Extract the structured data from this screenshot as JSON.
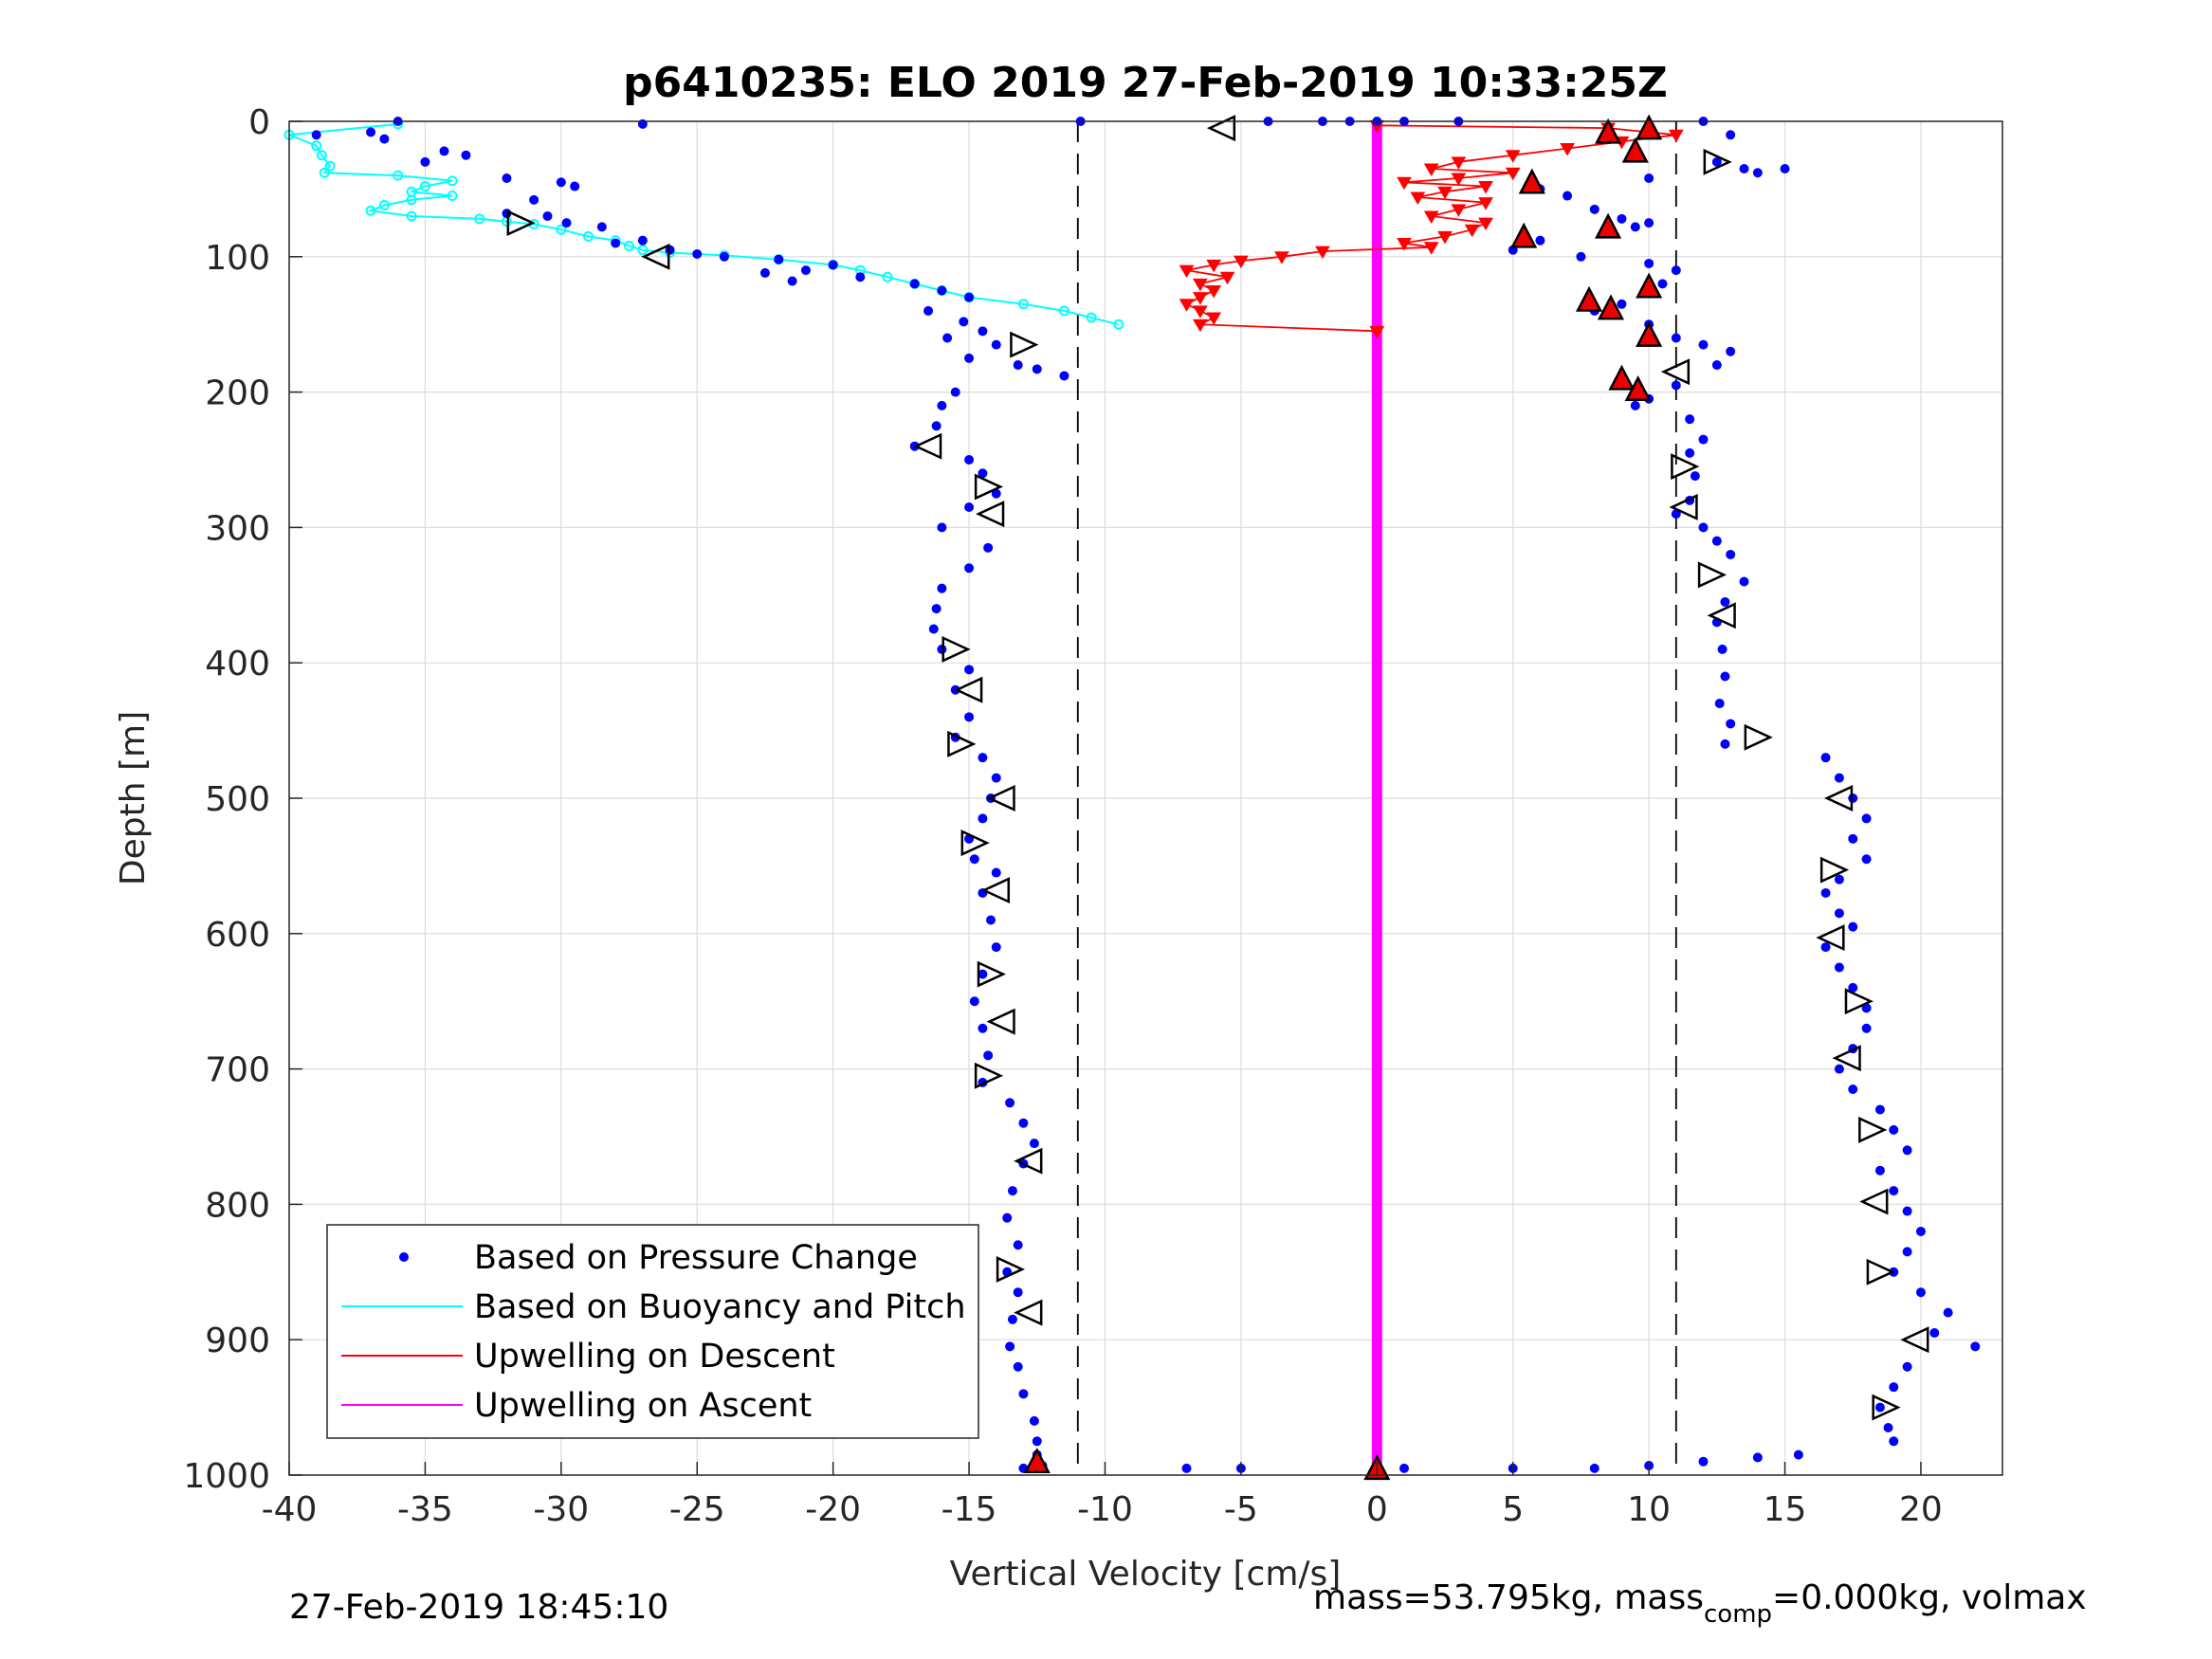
{
  "chart_data": {
    "type": "scatter",
    "title": "p6410235: ELO 2019 27-Feb-2019 10:33:25Z",
    "xlabel": "Vertical Velocity [cm/s]",
    "ylabel": "Depth [m]",
    "xlim": [
      -40,
      23
    ],
    "ylim": [
      0,
      1000
    ],
    "y_reversed": true,
    "grid": true,
    "xticks": [
      -40,
      -35,
      -30,
      -25,
      -20,
      -15,
      -10,
      -5,
      0,
      5,
      10,
      15,
      20
    ],
    "yticks": [
      0,
      100,
      200,
      300,
      400,
      500,
      600,
      700,
      800,
      900,
      1000
    ],
    "legend_position": "bottom-left",
    "colors": {
      "pressure": "#0000ff",
      "buoyancy": "#00ffff",
      "descent": "#ff0000",
      "ascent": "#ff00ff",
      "threshold": "#000000"
    },
    "thresholds_x": [
      -11,
      11
    ],
    "series": [
      {
        "name": "Based on Pressure Change",
        "style": "dots",
        "descent_points": [
          [
            -36,
            0
          ],
          [
            -27,
            2
          ],
          [
            -10.9,
            0
          ],
          [
            -39,
            10
          ],
          [
            -37,
            8
          ],
          [
            -36.5,
            13
          ],
          [
            -35,
            30
          ],
          [
            -34.3,
            22
          ],
          [
            -33.5,
            25
          ],
          [
            -32,
            42
          ],
          [
            -30,
            45
          ],
          [
            -29.5,
            48
          ],
          [
            -31,
            58
          ],
          [
            -32,
            68
          ],
          [
            -30.5,
            70
          ],
          [
            -29.8,
            75
          ],
          [
            -28.5,
            78
          ],
          [
            -28,
            90
          ],
          [
            -27,
            88
          ],
          [
            -26,
            95
          ],
          [
            -25,
            98
          ],
          [
            -24,
            100
          ],
          [
            -22,
            102
          ],
          [
            -20,
            106
          ],
          [
            -21,
            110
          ],
          [
            -22.5,
            112
          ],
          [
            -21.5,
            118
          ],
          [
            -19,
            115
          ],
          [
            -17,
            120
          ],
          [
            -16,
            125
          ],
          [
            -15,
            130
          ],
          [
            -16.5,
            140
          ],
          [
            -15.2,
            148
          ],
          [
            -14.5,
            155
          ],
          [
            -15.8,
            160
          ],
          [
            -14,
            165
          ],
          [
            -15,
            175
          ],
          [
            -13.2,
            180
          ],
          [
            -11.5,
            188
          ],
          [
            -12.5,
            183
          ],
          [
            -15.5,
            200
          ],
          [
            -16,
            210
          ],
          [
            -16.2,
            225
          ],
          [
            -17,
            240
          ],
          [
            -15,
            250
          ],
          [
            -14.5,
            260
          ],
          [
            -14,
            275
          ],
          [
            -15,
            285
          ],
          [
            -16,
            300
          ],
          [
            -14.3,
            315
          ],
          [
            -15,
            330
          ],
          [
            -16,
            345
          ],
          [
            -16.2,
            360
          ],
          [
            -16.3,
            375
          ],
          [
            -16,
            390
          ],
          [
            -15,
            405
          ],
          [
            -15.5,
            420
          ],
          [
            -15,
            440
          ],
          [
            -15.5,
            455
          ],
          [
            -14.5,
            470
          ],
          [
            -14,
            485
          ],
          [
            -14.2,
            500
          ],
          [
            -14.5,
            515
          ],
          [
            -15,
            530
          ],
          [
            -14.8,
            545
          ],
          [
            -14,
            555
          ],
          [
            -14.5,
            570
          ],
          [
            -14.2,
            590
          ],
          [
            -14,
            610
          ],
          [
            -14.5,
            630
          ],
          [
            -14.8,
            650
          ],
          [
            -14.5,
            670
          ],
          [
            -14.3,
            690
          ],
          [
            -14.5,
            710
          ],
          [
            -13.5,
            725
          ],
          [
            -13,
            740
          ],
          [
            -12.6,
            755
          ],
          [
            -13,
            770
          ],
          [
            -13.4,
            790
          ],
          [
            -13.6,
            810
          ],
          [
            -13.2,
            830
          ],
          [
            -13.6,
            850
          ],
          [
            -13.2,
            865
          ],
          [
            -13.4,
            885
          ],
          [
            -13.5,
            905
          ],
          [
            -13.2,
            920
          ],
          [
            -13,
            940
          ],
          [
            -12.6,
            960
          ],
          [
            -12.5,
            975
          ],
          [
            -12.5,
            985
          ],
          [
            -13,
            995
          ],
          [
            -12.3,
            993
          ]
        ],
        "ascent_points": [
          [
            0,
            0
          ],
          [
            -4,
            0
          ],
          [
            -2,
            0
          ],
          [
            -1,
            0
          ],
          [
            1,
            0
          ],
          [
            3,
            0
          ],
          [
            8.5,
            5
          ],
          [
            10,
            10
          ],
          [
            12,
            0
          ],
          [
            13,
            10
          ],
          [
            13.5,
            35
          ],
          [
            12.5,
            30
          ],
          [
            15,
            35
          ],
          [
            14,
            38
          ],
          [
            10,
            42
          ],
          [
            7,
            55
          ],
          [
            6,
            50
          ],
          [
            8,
            65
          ],
          [
            9,
            72
          ],
          [
            9.5,
            78
          ],
          [
            10,
            75
          ],
          [
            6,
            88
          ],
          [
            5,
            95
          ],
          [
            7.5,
            100
          ],
          [
            10,
            105
          ],
          [
            11,
            110
          ],
          [
            10.5,
            120
          ],
          [
            10,
            125
          ],
          [
            9,
            135
          ],
          [
            8,
            140
          ],
          [
            10,
            150
          ],
          [
            11,
            160
          ],
          [
            12,
            165
          ],
          [
            13,
            170
          ],
          [
            12.5,
            180
          ],
          [
            11,
            195
          ],
          [
            10,
            205
          ],
          [
            9.5,
            210
          ],
          [
            11.5,
            220
          ],
          [
            12,
            235
          ],
          [
            11.5,
            245
          ],
          [
            11.7,
            262
          ],
          [
            11.5,
            280
          ],
          [
            11,
            290
          ],
          [
            12,
            300
          ],
          [
            12.5,
            310
          ],
          [
            13,
            320
          ],
          [
            13.5,
            340
          ],
          [
            12.8,
            355
          ],
          [
            12.5,
            370
          ],
          [
            12.7,
            390
          ],
          [
            12.8,
            410
          ],
          [
            12.6,
            430
          ],
          [
            13,
            445
          ],
          [
            12.8,
            460
          ],
          [
            16.5,
            470
          ],
          [
            17,
            485
          ],
          [
            17.5,
            500
          ],
          [
            18,
            515
          ],
          [
            17.5,
            530
          ],
          [
            18,
            545
          ],
          [
            17,
            560
          ],
          [
            16.5,
            570
          ],
          [
            17,
            585
          ],
          [
            17.5,
            595
          ],
          [
            16.5,
            610
          ],
          [
            17,
            625
          ],
          [
            17.5,
            640
          ],
          [
            18,
            655
          ],
          [
            18,
            670
          ],
          [
            17.5,
            685
          ],
          [
            17,
            700
          ],
          [
            17.5,
            715
          ],
          [
            18.5,
            730
          ],
          [
            19,
            745
          ],
          [
            19.5,
            760
          ],
          [
            18.5,
            775
          ],
          [
            19,
            790
          ],
          [
            19.5,
            805
          ],
          [
            20,
            820
          ],
          [
            19.5,
            835
          ],
          [
            19,
            850
          ],
          [
            20,
            865
          ],
          [
            21,
            880
          ],
          [
            20.5,
            895
          ],
          [
            22,
            905
          ],
          [
            19.5,
            920
          ],
          [
            19,
            935
          ],
          [
            18.5,
            950
          ],
          [
            18.8,
            965
          ],
          [
            19,
            975
          ],
          [
            -7,
            995
          ],
          [
            -5,
            995
          ],
          [
            1,
            995
          ],
          [
            5,
            995
          ],
          [
            8,
            995
          ],
          [
            10,
            993
          ],
          [
            12,
            990
          ],
          [
            14,
            987
          ],
          [
            15.5,
            985
          ]
        ]
      },
      {
        "name": "Based on Buoyancy and Pitch",
        "style": "line-circles",
        "points": [
          [
            -36,
            2
          ],
          [
            -40,
            10
          ],
          [
            -39,
            18
          ],
          [
            -38.8,
            25
          ],
          [
            -38.5,
            33
          ],
          [
            -38.7,
            38
          ],
          [
            -36,
            40
          ],
          [
            -34,
            44
          ],
          [
            -35,
            48
          ],
          [
            -35.5,
            52
          ],
          [
            -34,
            55
          ],
          [
            -35.5,
            58
          ],
          [
            -36.5,
            62
          ],
          [
            -37,
            66
          ],
          [
            -35.5,
            70
          ],
          [
            -33,
            72
          ],
          [
            -32,
            74
          ],
          [
            -31,
            76
          ],
          [
            -30,
            80
          ],
          [
            -29,
            85
          ],
          [
            -28,
            88
          ],
          [
            -27.5,
            92
          ],
          [
            -27,
            95
          ],
          [
            -26,
            97
          ],
          [
            -24,
            99
          ],
          [
            -22,
            102
          ],
          [
            -20,
            106
          ],
          [
            -19,
            110
          ],
          [
            -18,
            115
          ],
          [
            -17,
            120
          ],
          [
            -16,
            125
          ],
          [
            -15,
            130
          ],
          [
            -13,
            135
          ],
          [
            -11.5,
            140
          ],
          [
            -10.5,
            145
          ],
          [
            -9.5,
            150
          ]
        ]
      },
      {
        "name": "Upwelling on Descent",
        "style": "line-triangles",
        "points": [
          [
            0,
            3
          ],
          [
            8.5,
            5
          ],
          [
            11,
            10
          ],
          [
            9,
            15
          ],
          [
            7,
            20
          ],
          [
            5,
            25
          ],
          [
            3,
            30
          ],
          [
            2,
            35
          ],
          [
            5,
            38
          ],
          [
            3,
            42
          ],
          [
            1,
            45
          ],
          [
            4,
            48
          ],
          [
            2.5,
            52
          ],
          [
            1.5,
            56
          ],
          [
            4,
            60
          ],
          [
            3,
            65
          ],
          [
            2,
            70
          ],
          [
            4,
            75
          ],
          [
            3.5,
            80
          ],
          [
            2.5,
            85
          ],
          [
            1,
            90
          ],
          [
            2,
            93
          ],
          [
            -2,
            96
          ],
          [
            -3.5,
            100
          ],
          [
            -5,
            103
          ],
          [
            -6,
            106
          ],
          [
            -7,
            110
          ],
          [
            -5.5,
            115
          ],
          [
            -6.5,
            120
          ],
          [
            -6,
            125
          ],
          [
            -6.5,
            130
          ],
          [
            -7,
            135
          ],
          [
            -6.5,
            140
          ],
          [
            -6,
            145
          ],
          [
            -6.5,
            150
          ],
          [
            0,
            155
          ]
        ]
      },
      {
        "name": "Upwelling on Ascent",
        "style": "line",
        "points": [
          [
            0,
            0
          ],
          [
            0,
            1000
          ]
        ]
      }
    ],
    "markers": {
      "open_triangles": [
        [
          -5.7,
          5
        ],
        [
          -31.5,
          75
        ],
        [
          -26.5,
          100
        ],
        [
          -13,
          165
        ],
        [
          -16.5,
          240
        ],
        [
          -14.3,
          270
        ],
        [
          -14.2,
          290
        ],
        [
          -15.5,
          390
        ],
        [
          -15,
          420
        ],
        [
          -15.3,
          460
        ],
        [
          -13.8,
          500
        ],
        [
          -14.8,
          533
        ],
        [
          -14,
          568
        ],
        [
          -14.2,
          630
        ],
        [
          -13.8,
          665
        ],
        [
          -14.3,
          705
        ],
        [
          -12.8,
          768
        ],
        [
          -13.5,
          848
        ],
        [
          -12.8,
          880
        ],
        [
          12.5,
          30
        ],
        [
          11,
          185
        ],
        [
          11.3,
          255
        ],
        [
          11.3,
          285
        ],
        [
          12.3,
          335
        ],
        [
          12.7,
          365
        ],
        [
          14,
          455
        ],
        [
          17,
          500
        ],
        [
          16.8,
          553
        ],
        [
          16.7,
          603
        ],
        [
          17.7,
          650
        ],
        [
          17.3,
          692
        ],
        [
          18.2,
          745
        ],
        [
          18.3,
          798
        ],
        [
          18.5,
          850
        ],
        [
          19.8,
          900
        ],
        [
          18.7,
          950
        ]
      ],
      "red_triangles": [
        [
          8.5,
          8
        ],
        [
          10,
          5
        ],
        [
          9.5,
          22
        ],
        [
          5.7,
          45
        ],
        [
          8.5,
          78
        ],
        [
          5.4,
          85
        ],
        [
          10,
          122
        ],
        [
          7.8,
          132
        ],
        [
          8.6,
          138
        ],
        [
          10,
          158
        ],
        [
          9,
          190
        ],
        [
          9.6,
          198
        ],
        [
          0,
          995
        ],
        [
          -12.5,
          990
        ]
      ]
    }
  },
  "footer": {
    "timestamp": "27-Feb-2019 18:45:10",
    "mass_text_pre": "mass=53.795kg, mass",
    "mass_sub": "comp",
    "mass_text_post": "=0.000kg, volmax"
  }
}
